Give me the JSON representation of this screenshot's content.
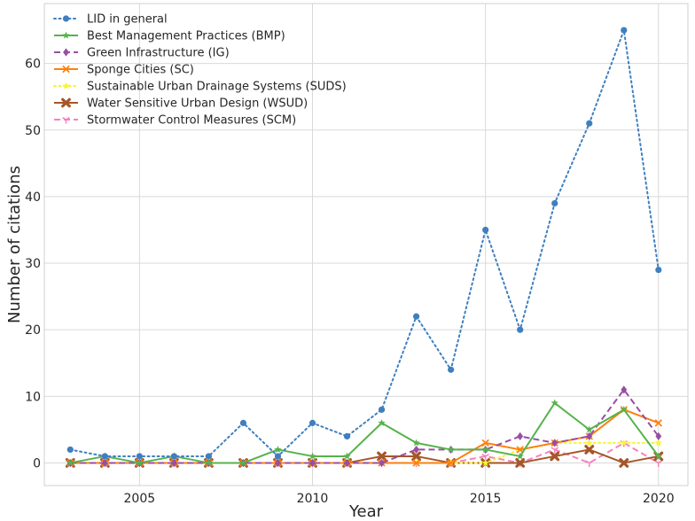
{
  "chart_data": {
    "type": "line",
    "title": "",
    "xlabel": "Year",
    "ylabel": "Number of citations",
    "xlim": [
      2002.25,
      2020.85
    ],
    "ylim": [
      -3.4,
      69
    ],
    "xticks": [
      2005,
      2010,
      2015,
      2020
    ],
    "yticks": [
      0,
      10,
      20,
      30,
      40,
      50,
      60
    ],
    "grid": true,
    "legend_position": "top-left",
    "x": [
      2003,
      2004,
      2005,
      2006,
      2007,
      2008,
      2009,
      2010,
      2011,
      2012,
      2013,
      2014,
      2015,
      2016,
      2017,
      2018,
      2019,
      2020
    ],
    "series": [
      {
        "name": "LID in general",
        "color": "#3f7fbf",
        "line_style": "dotted",
        "marker": "circle",
        "values": [
          2,
          1,
          1,
          1,
          1,
          6,
          1,
          6,
          4,
          8,
          22,
          14,
          35,
          20,
          39,
          51,
          65,
          29
        ]
      },
      {
        "name": "Best Management Practices (BMP)",
        "color": "#55b34c",
        "line_style": "solid",
        "marker": "star",
        "values": [
          0,
          1,
          0,
          1,
          0,
          0,
          2,
          1,
          1,
          6,
          3,
          2,
          2,
          1,
          9,
          5,
          8,
          1
        ]
      },
      {
        "name": "Green Infrastructure (IG)",
        "color": "#984ea3",
        "line_style": "dashed",
        "marker": "diamond",
        "values": [
          0,
          0,
          0,
          0,
          0,
          0,
          0,
          0,
          0,
          0,
          2,
          2,
          2,
          4,
          3,
          4,
          11,
          4
        ]
      },
      {
        "name": "Sponge Cities (SC)",
        "color": "#ff7f0e",
        "line_style": "solid",
        "marker": "x",
        "values": [
          0,
          0,
          0,
          0,
          0,
          0,
          0,
          0,
          0,
          0,
          0,
          0,
          3,
          2,
          3,
          4,
          8,
          6
        ]
      },
      {
        "name": "Sustainable Urban Drainage Systems (SUDS)",
        "color": "#f5f53a",
        "line_style": "dotted",
        "marker": "star",
        "values": [
          0,
          0,
          0,
          0,
          0,
          0,
          0,
          0,
          0,
          0,
          0,
          0,
          0,
          2,
          3,
          3,
          3,
          3
        ]
      },
      {
        "name": "Water Sensitive Urban Design (WSUD)",
        "color": "#a65628",
        "line_style": "solid",
        "marker": "x-filled",
        "values": [
          0,
          0,
          0,
          0,
          0,
          0,
          0,
          0,
          0,
          1,
          1,
          0,
          0,
          0,
          1,
          2,
          0,
          1
        ]
      },
      {
        "name": "Stormwater Control Measures (SCM)",
        "color": "#f781bf",
        "line_style": "dashed",
        "marker": "tri",
        "values": [
          0,
          0,
          0,
          0,
          0,
          0,
          0,
          0,
          0,
          0,
          0,
          0,
          1,
          0,
          2,
          0,
          3,
          0
        ]
      }
    ]
  }
}
